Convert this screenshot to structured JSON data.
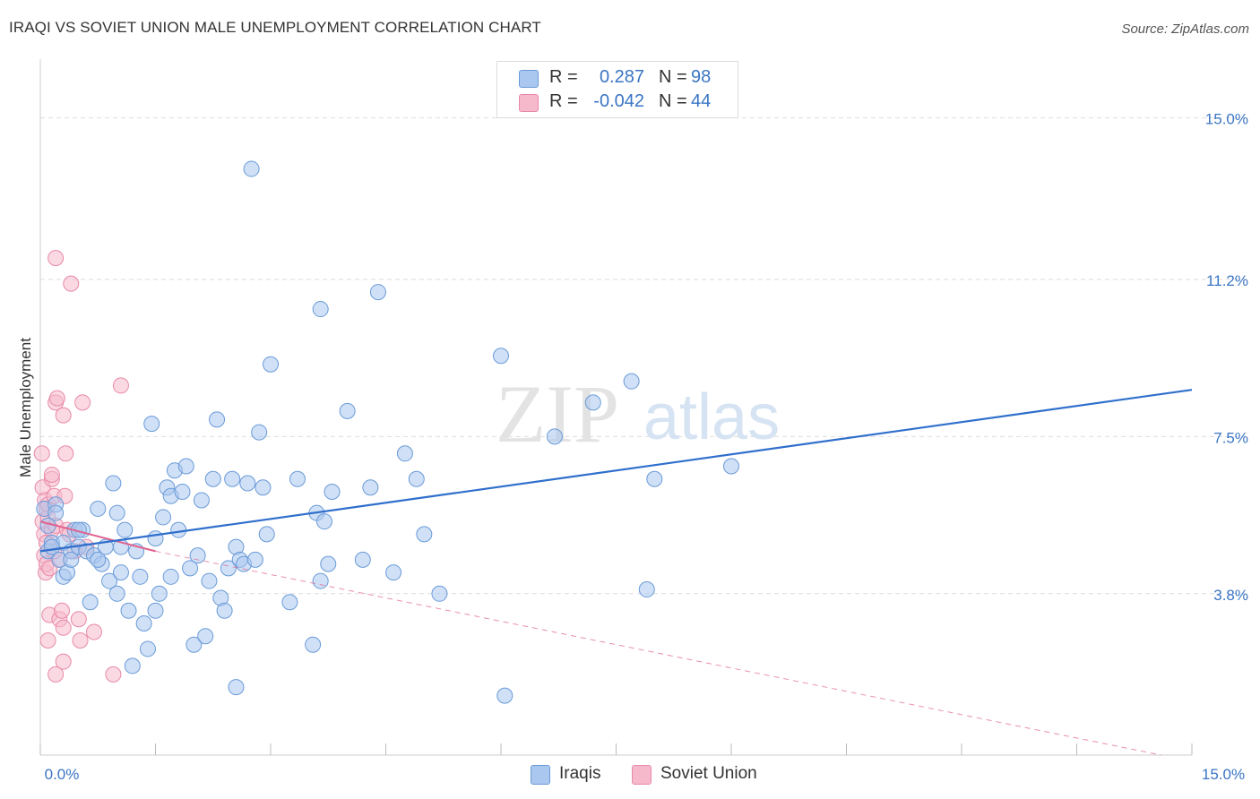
{
  "title": "IRAQI VS SOVIET UNION MALE UNEMPLOYMENT CORRELATION CHART",
  "source": "Source: ZipAtlas.com",
  "watermark": {
    "zip": "ZIP",
    "atlas": "atlas"
  },
  "legend_top": {
    "rows": [
      {
        "r_label": "R =",
        "r_value": "0.287",
        "n_label": "N =",
        "n_value": "98"
      },
      {
        "r_label": "R =",
        "r_value": "-0.042",
        "n_label": "N =",
        "n_value": "44"
      }
    ]
  },
  "legend_bottom": {
    "iraqis": "Iraqis",
    "soviet": "Soviet Union"
  },
  "colors": {
    "blue_fill": "#a9c7ef",
    "blue_stroke": "#6a9bd8",
    "blue_line": "#2f6fcc",
    "pink_fill": "#f6b9cc",
    "pink_stroke": "#e889a8",
    "pink_line": "#e0608e",
    "axis_text": "#3a75c4",
    "grid": "#dddddd"
  },
  "chart_data": {
    "type": "scatter",
    "title": "IRAQI VS SOVIET UNION MALE UNEMPLOYMENT CORRELATION CHART",
    "xlabel": "",
    "ylabel": "Male Unemployment",
    "xlim": [
      0,
      15
    ],
    "ylim": [
      0,
      16.3
    ],
    "x_tick_labels": [
      {
        "value": 0,
        "label": "0.0%"
      },
      {
        "value": 15,
        "label": "15.0%"
      }
    ],
    "y_ticks": [
      {
        "value": 3.8,
        "label": "3.8%"
      },
      {
        "value": 7.5,
        "label": "7.5%"
      },
      {
        "value": 11.2,
        "label": "11.2%"
      },
      {
        "value": 15.0,
        "label": "15.0%"
      }
    ],
    "series": [
      {
        "name": "Iraqis",
        "r": 0.287,
        "n": 98,
        "trend": {
          "x": [
            0,
            15
          ],
          "y": [
            4.8,
            8.6
          ],
          "dashed": false
        },
        "points": [
          [
            0.05,
            5.8
          ],
          [
            0.1,
            5.4
          ],
          [
            0.1,
            4.8
          ],
          [
            0.15,
            5.0
          ],
          [
            0.2,
            5.9
          ],
          [
            0.25,
            4.6
          ],
          [
            0.3,
            4.2
          ],
          [
            0.3,
            5.0
          ],
          [
            0.35,
            4.3
          ],
          [
            0.4,
            4.8
          ],
          [
            0.45,
            5.3
          ],
          [
            0.5,
            4.9
          ],
          [
            0.55,
            5.3
          ],
          [
            0.6,
            4.8
          ],
          [
            0.65,
            3.6
          ],
          [
            0.7,
            4.7
          ],
          [
            0.75,
            5.8
          ],
          [
            0.8,
            4.5
          ],
          [
            0.85,
            4.9
          ],
          [
            0.9,
            4.1
          ],
          [
            0.95,
            6.4
          ],
          [
            1.0,
            5.7
          ],
          [
            1.0,
            3.8
          ],
          [
            1.05,
            4.3
          ],
          [
            1.1,
            5.3
          ],
          [
            1.15,
            3.4
          ],
          [
            1.2,
            2.1
          ],
          [
            1.25,
            4.8
          ],
          [
            1.3,
            4.2
          ],
          [
            1.35,
            3.1
          ],
          [
            1.4,
            2.5
          ],
          [
            1.45,
            7.8
          ],
          [
            1.5,
            5.1
          ],
          [
            1.55,
            3.8
          ],
          [
            1.6,
            5.6
          ],
          [
            1.65,
            6.3
          ],
          [
            1.7,
            6.1
          ],
          [
            1.7,
            4.2
          ],
          [
            1.75,
            6.7
          ],
          [
            1.8,
            5.3
          ],
          [
            1.85,
            6.2
          ],
          [
            1.9,
            6.8
          ],
          [
            1.95,
            4.4
          ],
          [
            2.0,
            2.6
          ],
          [
            2.05,
            4.7
          ],
          [
            2.1,
            6.0
          ],
          [
            2.15,
            2.8
          ],
          [
            2.2,
            4.1
          ],
          [
            2.25,
            6.5
          ],
          [
            2.3,
            7.9
          ],
          [
            2.35,
            3.7
          ],
          [
            2.4,
            3.4
          ],
          [
            2.45,
            4.4
          ],
          [
            2.5,
            6.5
          ],
          [
            2.55,
            4.9
          ],
          [
            2.55,
            1.6
          ],
          [
            2.6,
            4.6
          ],
          [
            2.65,
            4.5
          ],
          [
            2.7,
            6.4
          ],
          [
            2.75,
            13.8
          ],
          [
            2.8,
            4.6
          ],
          [
            2.85,
            7.6
          ],
          [
            2.9,
            6.3
          ],
          [
            2.95,
            5.2
          ],
          [
            3.0,
            9.2
          ],
          [
            3.25,
            3.6
          ],
          [
            3.35,
            6.5
          ],
          [
            3.55,
            2.6
          ],
          [
            3.6,
            5.7
          ],
          [
            3.65,
            4.1
          ],
          [
            3.65,
            10.5
          ],
          [
            3.7,
            5.5
          ],
          [
            3.75,
            4.5
          ],
          [
            3.8,
            6.2
          ],
          [
            4.0,
            8.1
          ],
          [
            4.2,
            4.6
          ],
          [
            4.3,
            6.3
          ],
          [
            4.4,
            10.9
          ],
          [
            4.6,
            4.3
          ],
          [
            4.75,
            7.1
          ],
          [
            4.9,
            6.5
          ],
          [
            5.0,
            5.2
          ],
          [
            5.2,
            3.8
          ],
          [
            6.0,
            9.4
          ],
          [
            6.05,
            1.4
          ],
          [
            6.7,
            7.5
          ],
          [
            7.2,
            8.3
          ],
          [
            7.7,
            8.8
          ],
          [
            7.9,
            3.9
          ],
          [
            8.0,
            6.5
          ],
          [
            9.0,
            6.8
          ],
          [
            0.15,
            4.9
          ],
          [
            0.2,
            5.7
          ],
          [
            0.4,
            4.6
          ],
          [
            0.5,
            5.3
          ],
          [
            0.75,
            4.6
          ],
          [
            1.05,
            4.9
          ],
          [
            1.5,
            3.4
          ]
        ]
      },
      {
        "name": "Soviet Union",
        "r": -0.042,
        "n": 44,
        "trend": {
          "x": [
            0,
            1.5
          ],
          "y": [
            5.5,
            4.8
          ],
          "dashed": false
        },
        "trend_extended": {
          "x": [
            1.5,
            14.6
          ],
          "y": [
            4.8,
            0.0
          ],
          "dashed": true
        },
        "points": [
          [
            0.02,
            7.1
          ],
          [
            0.03,
            6.3
          ],
          [
            0.03,
            5.5
          ],
          [
            0.05,
            5.2
          ],
          [
            0.05,
            4.7
          ],
          [
            0.06,
            6.0
          ],
          [
            0.07,
            4.3
          ],
          [
            0.08,
            5.8
          ],
          [
            0.08,
            4.5
          ],
          [
            0.1,
            2.7
          ],
          [
            0.1,
            5.6
          ],
          [
            0.1,
            5.9
          ],
          [
            0.12,
            4.4
          ],
          [
            0.12,
            3.3
          ],
          [
            0.15,
            6.5
          ],
          [
            0.15,
            6.6
          ],
          [
            0.15,
            5.3
          ],
          [
            0.18,
            6.1
          ],
          [
            0.2,
            5.4
          ],
          [
            0.2,
            1.9
          ],
          [
            0.2,
            11.7
          ],
          [
            0.2,
            8.3
          ],
          [
            0.22,
            8.4
          ],
          [
            0.25,
            4.6
          ],
          [
            0.25,
            3.2
          ],
          [
            0.28,
            3.4
          ],
          [
            0.3,
            3.0
          ],
          [
            0.3,
            8.0
          ],
          [
            0.3,
            2.2
          ],
          [
            0.32,
            6.1
          ],
          [
            0.33,
            7.1
          ],
          [
            0.35,
            5.3
          ],
          [
            0.38,
            5.2
          ],
          [
            0.4,
            11.1
          ],
          [
            0.45,
            4.8
          ],
          [
            0.5,
            3.2
          ],
          [
            0.52,
            2.7
          ],
          [
            0.55,
            8.3
          ],
          [
            0.6,
            4.9
          ],
          [
            0.7,
            2.9
          ],
          [
            0.95,
            1.9
          ],
          [
            1.05,
            8.7
          ],
          [
            0.08,
            5.0
          ],
          [
            0.18,
            4.8
          ]
        ]
      }
    ]
  }
}
